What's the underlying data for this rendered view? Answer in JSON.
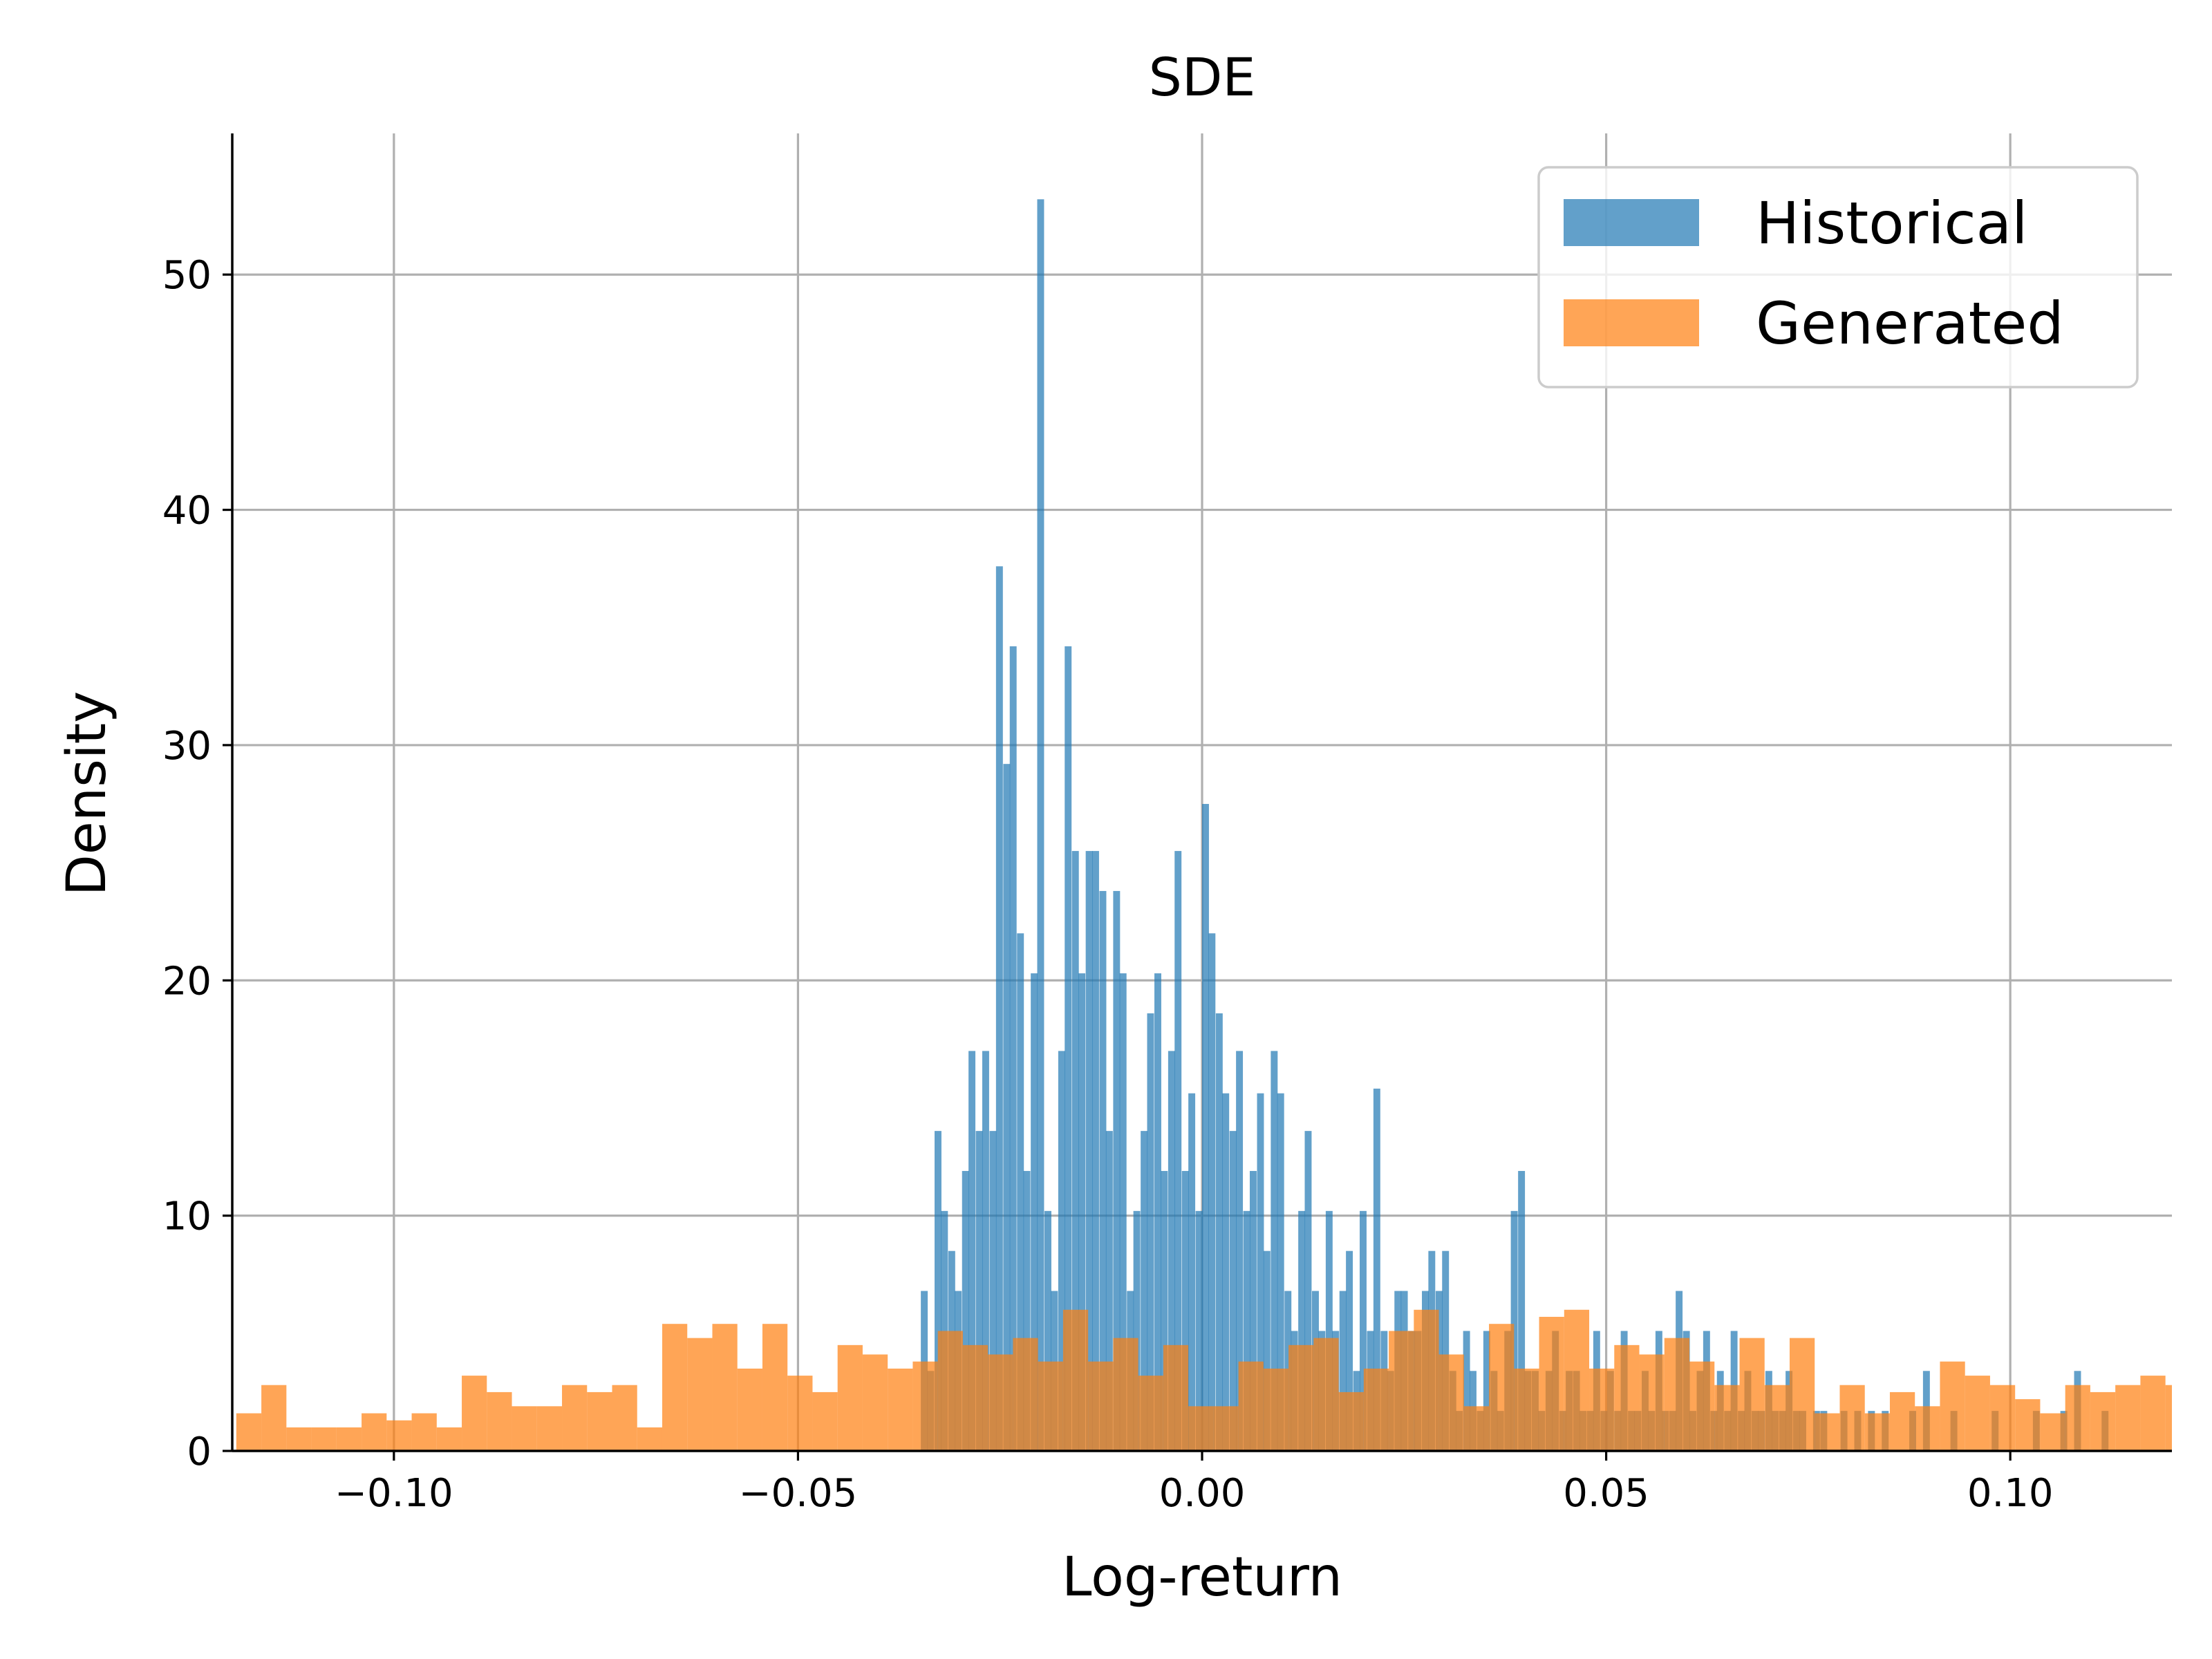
{
  "chart_data": {
    "type": "bar",
    "title": "SDE",
    "xlabel": "Log-return",
    "ylabel": "Density",
    "xlim": [
      -0.12,
      0.12
    ],
    "ylim": [
      0,
      56
    ],
    "xticks": [
      -0.1,
      -0.05,
      0.0,
      0.05,
      0.1
    ],
    "xtick_labels": [
      "−0.10",
      "−0.05",
      "0.00",
      "0.05",
      "0.10"
    ],
    "yticks": [
      0,
      10,
      20,
      30,
      40,
      50
    ],
    "ytick_labels": [
      "0",
      "10",
      "20",
      "30",
      "40",
      "50"
    ],
    "grid": true,
    "legend_position": "upper right",
    "series": [
      {
        "name": "Historical",
        "color": "#1f77b4",
        "opacity": 0.7,
        "bin_width": 0.00085,
        "bins": [
          [
            -0.0348,
            6.8
          ],
          [
            -0.034,
            3.4
          ],
          [
            -0.0331,
            13.6
          ],
          [
            -0.0323,
            10.2
          ],
          [
            -0.0314,
            8.5
          ],
          [
            -0.0306,
            6.8
          ],
          [
            -0.0297,
            11.9
          ],
          [
            -0.0289,
            17.0
          ],
          [
            -0.028,
            13.6
          ],
          [
            -0.0272,
            17.0
          ],
          [
            -0.0263,
            13.6
          ],
          [
            -0.0255,
            37.6
          ],
          [
            -0.0246,
            29.2
          ],
          [
            -0.0238,
            34.2
          ],
          [
            -0.0229,
            22.0
          ],
          [
            -0.0221,
            11.9
          ],
          [
            -0.0212,
            20.3
          ],
          [
            -0.0204,
            53.2
          ],
          [
            -0.0195,
            10.2
          ],
          [
            -0.0187,
            6.8
          ],
          [
            -0.0178,
            17.0
          ],
          [
            -0.017,
            34.2
          ],
          [
            -0.0161,
            25.5
          ],
          [
            -0.0153,
            20.3
          ],
          [
            -0.0144,
            25.5
          ],
          [
            -0.0136,
            25.5
          ],
          [
            -0.0127,
            23.8
          ],
          [
            -0.0119,
            13.6
          ],
          [
            -0.011,
            23.8
          ],
          [
            -0.0102,
            20.3
          ],
          [
            -0.0093,
            6.8
          ],
          [
            -0.0085,
            10.2
          ],
          [
            -0.0076,
            13.6
          ],
          [
            -0.0068,
            18.6
          ],
          [
            -0.0059,
            20.3
          ],
          [
            -0.0051,
            11.9
          ],
          [
            -0.0042,
            17.0
          ],
          [
            -0.0034,
            25.5
          ],
          [
            -0.0025,
            11.9
          ],
          [
            -0.0017,
            15.2
          ],
          [
            -0.0008,
            10.2
          ],
          [
            0.0,
            27.5
          ],
          [
            0.0008,
            22.0
          ],
          [
            0.0017,
            18.6
          ],
          [
            0.0025,
            15.2
          ],
          [
            0.0034,
            13.6
          ],
          [
            0.0042,
            17.0
          ],
          [
            0.0051,
            10.2
          ],
          [
            0.0059,
            11.9
          ],
          [
            0.0068,
            15.2
          ],
          [
            0.0076,
            8.5
          ],
          [
            0.0085,
            17.0
          ],
          [
            0.0093,
            15.2
          ],
          [
            0.0102,
            6.8
          ],
          [
            0.011,
            5.1
          ],
          [
            0.0119,
            10.2
          ],
          [
            0.0127,
            13.6
          ],
          [
            0.0136,
            6.8
          ],
          [
            0.0144,
            5.1
          ],
          [
            0.0153,
            10.2
          ],
          [
            0.0161,
            5.1
          ],
          [
            0.017,
            6.8
          ],
          [
            0.0178,
            8.5
          ],
          [
            0.0187,
            3.4
          ],
          [
            0.0195,
            10.2
          ],
          [
            0.0204,
            5.1
          ],
          [
            0.0212,
            15.4
          ],
          [
            0.0221,
            5.1
          ],
          [
            0.0229,
            3.4
          ],
          [
            0.0238,
            6.8
          ],
          [
            0.0246,
            6.8
          ],
          [
            0.0255,
            5.1
          ],
          [
            0.0263,
            5.1
          ],
          [
            0.0272,
            6.8
          ],
          [
            0.028,
            8.5
          ],
          [
            0.0289,
            6.8
          ],
          [
            0.0297,
            8.5
          ],
          [
            0.0306,
            3.4
          ],
          [
            0.0314,
            1.7
          ],
          [
            0.0323,
            5.1
          ],
          [
            0.0331,
            3.4
          ],
          [
            0.034,
            1.7
          ],
          [
            0.0348,
            5.1
          ],
          [
            0.0357,
            3.4
          ],
          [
            0.0365,
            1.7
          ],
          [
            0.0374,
            5.1
          ],
          [
            0.0382,
            10.2
          ],
          [
            0.0391,
            11.9
          ],
          [
            0.0399,
            3.4
          ],
          [
            0.0408,
            3.4
          ],
          [
            0.0416,
            1.7
          ],
          [
            0.0425,
            3.4
          ],
          [
            0.0433,
            5.1
          ],
          [
            0.0442,
            1.7
          ],
          [
            0.045,
            3.4
          ],
          [
            0.0459,
            3.4
          ],
          [
            0.0467,
            1.7
          ],
          [
            0.0476,
            1.7
          ],
          [
            0.0484,
            5.1
          ],
          [
            0.0493,
            1.7
          ],
          [
            0.0501,
            3.4
          ],
          [
            0.051,
            1.7
          ],
          [
            0.0518,
            5.1
          ],
          [
            0.0527,
            1.7
          ],
          [
            0.0535,
            1.7
          ],
          [
            0.0544,
            3.4
          ],
          [
            0.0552,
            1.7
          ],
          [
            0.0561,
            5.1
          ],
          [
            0.0569,
            1.7
          ],
          [
            0.0578,
            1.7
          ],
          [
            0.0586,
            6.8
          ],
          [
            0.0595,
            5.1
          ],
          [
            0.0603,
            1.7
          ],
          [
            0.0612,
            3.4
          ],
          [
            0.062,
            5.1
          ],
          [
            0.0629,
            1.7
          ],
          [
            0.0637,
            3.4
          ],
          [
            0.0646,
            1.7
          ],
          [
            0.0654,
            5.1
          ],
          [
            0.0663,
            1.7
          ],
          [
            0.0671,
            3.4
          ],
          [
            0.068,
            1.7
          ],
          [
            0.0688,
            1.7
          ],
          [
            0.0697,
            3.4
          ],
          [
            0.0705,
            1.7
          ],
          [
            0.0714,
            1.7
          ],
          [
            0.0722,
            3.4
          ],
          [
            0.0731,
            1.7
          ],
          [
            0.0739,
            1.7
          ],
          [
            0.0756,
            1.7
          ],
          [
            0.0765,
            1.7
          ],
          [
            0.079,
            1.7
          ],
          [
            0.0807,
            1.7
          ],
          [
            0.0824,
            1.7
          ],
          [
            0.0841,
            1.7
          ],
          [
            0.0875,
            1.7
          ],
          [
            0.0892,
            3.4
          ],
          [
            0.0926,
            1.7
          ],
          [
            0.0977,
            1.7
          ],
          [
            0.1028,
            1.7
          ],
          [
            0.1062,
            1.7
          ],
          [
            0.1079,
            3.4
          ],
          [
            0.1113,
            1.7
          ]
        ]
      },
      {
        "name": "Generated",
        "color": "#ff7f0e",
        "opacity": 0.7,
        "bin_width": 0.0031,
        "bins": [
          [
            -0.1195,
            1.6
          ],
          [
            -0.1164,
            2.8
          ],
          [
            -0.1133,
            1.0
          ],
          [
            -0.1102,
            1.0
          ],
          [
            -0.1071,
            1.0
          ],
          [
            -0.104,
            1.6
          ],
          [
            -0.1009,
            1.3
          ],
          [
            -0.0978,
            1.6
          ],
          [
            -0.0947,
            1.0
          ],
          [
            -0.0916,
            3.2
          ],
          [
            -0.0885,
            2.5
          ],
          [
            -0.0854,
            1.9
          ],
          [
            -0.0823,
            1.9
          ],
          [
            -0.0792,
            2.8
          ],
          [
            -0.0761,
            2.5
          ],
          [
            -0.073,
            2.8
          ],
          [
            -0.0699,
            1.0
          ],
          [
            -0.0668,
            5.4
          ],
          [
            -0.0637,
            4.8
          ],
          [
            -0.0606,
            5.4
          ],
          [
            -0.0575,
            3.5
          ],
          [
            -0.0544,
            5.4
          ],
          [
            -0.0513,
            3.2
          ],
          [
            -0.0482,
            2.5
          ],
          [
            -0.0451,
            4.5
          ],
          [
            -0.042,
            4.1
          ],
          [
            -0.0389,
            3.5
          ],
          [
            -0.0358,
            3.8
          ],
          [
            -0.0327,
            5.1
          ],
          [
            -0.0296,
            4.5
          ],
          [
            -0.0265,
            4.1
          ],
          [
            -0.0234,
            4.8
          ],
          [
            -0.0203,
            3.8
          ],
          [
            -0.0172,
            6.0
          ],
          [
            -0.0141,
            3.8
          ],
          [
            -0.011,
            4.8
          ],
          [
            -0.0079,
            3.2
          ],
          [
            -0.0048,
            4.5
          ],
          [
            -0.0017,
            1.9
          ],
          [
            0.0014,
            1.9
          ],
          [
            0.0045,
            3.8
          ],
          [
            0.0076,
            3.5
          ],
          [
            0.0107,
            4.5
          ],
          [
            0.0138,
            4.8
          ],
          [
            0.0169,
            2.5
          ],
          [
            0.02,
            3.5
          ],
          [
            0.0231,
            5.1
          ],
          [
            0.0262,
            6.0
          ],
          [
            0.0293,
            4.1
          ],
          [
            0.0324,
            1.9
          ],
          [
            0.0355,
            5.4
          ],
          [
            0.0386,
            3.5
          ],
          [
            0.0417,
            5.7
          ],
          [
            0.0448,
            6.0
          ],
          [
            0.0479,
            3.5
          ],
          [
            0.051,
            4.5
          ],
          [
            0.0541,
            4.1
          ],
          [
            0.0572,
            4.8
          ],
          [
            0.0603,
            3.8
          ],
          [
            0.0634,
            2.8
          ],
          [
            0.0665,
            4.8
          ],
          [
            0.0696,
            2.8
          ],
          [
            0.0727,
            4.8
          ],
          [
            0.0758,
            1.6
          ],
          [
            0.0789,
            2.8
          ],
          [
            0.082,
            1.6
          ],
          [
            0.0851,
            2.5
          ],
          [
            0.0882,
            1.9
          ],
          [
            0.0913,
            3.8
          ],
          [
            0.0944,
            3.2
          ],
          [
            0.0975,
            2.8
          ],
          [
            0.1006,
            2.2
          ],
          [
            0.1037,
            1.6
          ],
          [
            0.1068,
            2.8
          ],
          [
            0.1099,
            2.5
          ],
          [
            0.113,
            2.8
          ],
          [
            0.1161,
            3.2
          ],
          [
            0.1192,
            2.8
          ]
        ]
      }
    ]
  }
}
